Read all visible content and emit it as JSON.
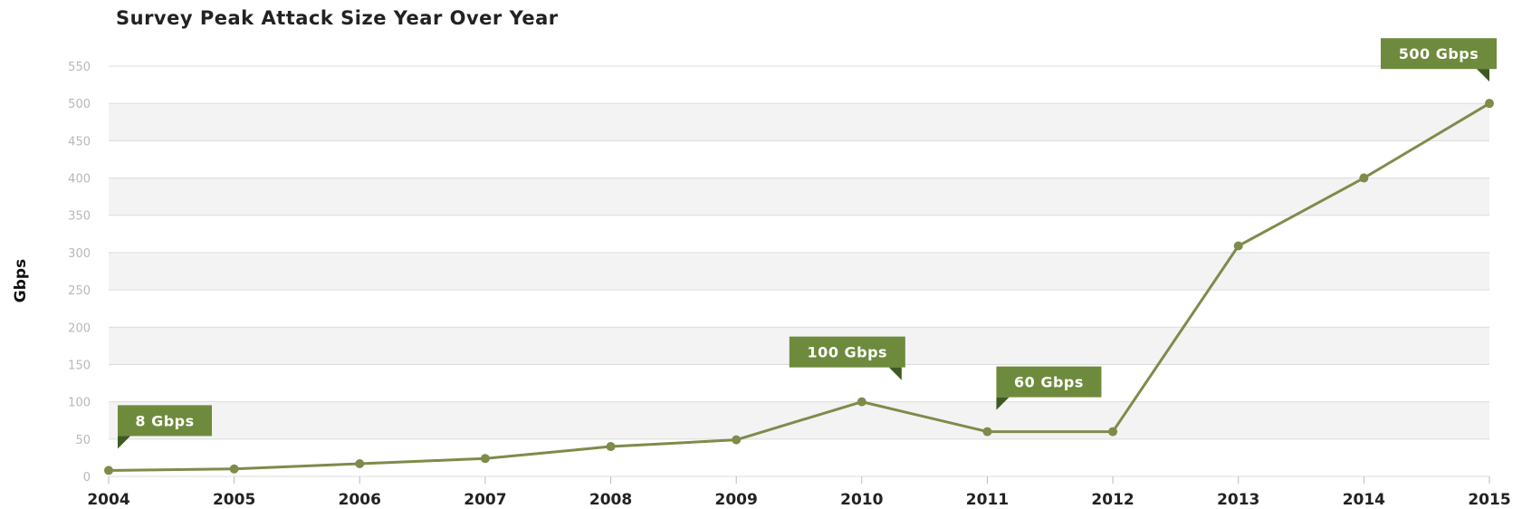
{
  "chart_data": {
    "type": "line",
    "title": "Survey Peak Attack Size Year Over Year",
    "xlabel": "",
    "ylabel": "Gbps",
    "ylim": [
      0,
      550
    ],
    "y_ticks": [
      "0",
      "50",
      "100",
      "150",
      "200",
      "250",
      "300",
      "350",
      "400",
      "450",
      "500",
      "550"
    ],
    "categories": [
      "2004",
      "2005",
      "2006",
      "2007",
      "2008",
      "2009",
      "2010",
      "2011",
      "2012",
      "2013",
      "2014",
      "2015"
    ],
    "series": [
      {
        "values": [
          8,
          10,
          17,
          24,
          40,
          49,
          100,
          60,
          60,
          309,
          400,
          500
        ]
      }
    ],
    "annotations": [
      {
        "text": "8 Gbps",
        "index": 0
      },
      {
        "text": "100 Gbps",
        "index": 6
      },
      {
        "text": "60 Gbps",
        "index": 7
      },
      {
        "text": "500 Gbps",
        "index": 11
      }
    ],
    "grid": true,
    "colors": {
      "line": "#7d8c4a",
      "callout": "#6e8a3c",
      "callout_tail": "#3e5a24",
      "band": "#f3f3f3",
      "gridline": "#dcdcdc"
    }
  }
}
